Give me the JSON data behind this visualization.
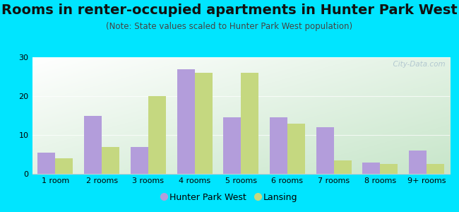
{
  "title": "Rooms in renter-occupied apartments in Hunter Park West",
  "subtitle": "(Note: State values scaled to Hunter Park West population)",
  "categories": [
    "1 room",
    "2 rooms",
    "3 rooms",
    "4 rooms",
    "5 rooms",
    "6 rooms",
    "7 rooms",
    "8 rooms",
    "9+ rooms"
  ],
  "hunter_park_west": [
    5.5,
    15.0,
    7.0,
    27.0,
    14.5,
    14.5,
    12.0,
    3.0,
    6.0
  ],
  "lansing": [
    4.0,
    7.0,
    20.0,
    26.0,
    26.0,
    13.0,
    3.5,
    2.5,
    2.5
  ],
  "bar_color_hunter": "#b39ddb",
  "bar_color_lansing": "#c5d880",
  "background_color": "#00e5ff",
  "ylim": [
    0,
    30
  ],
  "yticks": [
    0,
    10,
    20,
    30
  ],
  "bar_width": 0.38,
  "legend_labels": [
    "Hunter Park West",
    "Lansing"
  ],
  "title_fontsize": 14,
  "subtitle_fontsize": 8.5,
  "tick_fontsize": 8,
  "watermark": "  City-Data.com"
}
